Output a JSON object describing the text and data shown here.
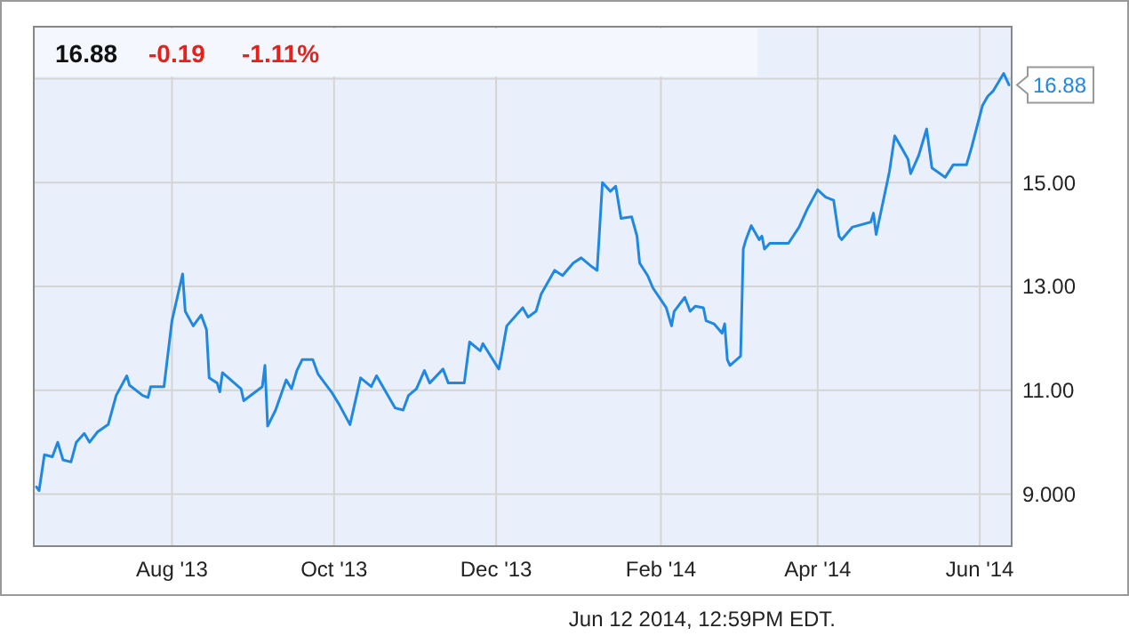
{
  "chart_data": {
    "type": "line",
    "x": [
      "2013-06-11",
      "2013-06-12",
      "2013-06-14",
      "2013-06-17",
      "2013-06-19",
      "2013-06-21",
      "2013-06-24",
      "2013-06-26",
      "2013-06-29",
      "2013-07-01",
      "2013-07-04",
      "2013-07-08",
      "2013-07-11",
      "2013-07-15",
      "2013-07-16",
      "2013-07-21",
      "2013-07-23",
      "2013-07-24",
      "2013-07-29",
      "2013-08-01",
      "2013-08-05",
      "2013-08-06",
      "2013-08-09",
      "2013-08-12",
      "2013-08-14",
      "2013-08-15",
      "2013-08-18",
      "2013-08-19",
      "2013-08-20",
      "2013-08-27",
      "2013-08-28",
      "2013-09-04",
      "2013-09-05",
      "2013-09-06",
      "2013-09-09",
      "2013-09-13",
      "2013-09-15",
      "2013-09-17",
      "2013-09-19",
      "2013-09-23",
      "2013-09-25",
      "2013-09-30",
      "2013-10-03",
      "2013-10-07",
      "2013-10-11",
      "2013-10-15",
      "2013-10-17",
      "2013-10-24",
      "2013-10-27",
      "2013-10-29",
      "2013-11-01",
      "2013-11-04",
      "2013-11-06",
      "2013-11-11",
      "2013-11-13",
      "2013-11-19",
      "2013-11-21",
      "2013-11-25",
      "2013-11-26",
      "2013-12-02",
      "2013-12-03",
      "2013-12-05",
      "2013-12-11",
      "2013-12-13",
      "2013-12-16",
      "2013-12-18",
      "2013-12-23",
      "2013-12-26",
      "2013-12-30",
      "2014-01-02",
      "2014-01-06",
      "2014-01-08",
      "2014-01-10",
      "2014-01-13",
      "2014-01-15",
      "2014-01-17",
      "2014-01-21",
      "2014-01-23",
      "2014-01-24",
      "2014-01-27",
      "2014-01-29",
      "2014-02-03",
      "2014-02-05",
      "2014-02-06",
      "2014-02-10",
      "2014-02-12",
      "2014-02-14",
      "2014-02-17",
      "2014-02-18",
      "2014-02-21",
      "2014-02-24",
      "2014-02-25",
      "2014-02-26",
      "2014-02-27",
      "2014-03-03",
      "2014-03-04",
      "2014-03-05",
      "2014-03-07",
      "2014-03-10",
      "2014-03-11",
      "2014-03-12",
      "2014-03-14",
      "2014-03-19",
      "2014-03-21",
      "2014-03-25",
      "2014-03-28",
      "2014-04-01",
      "2014-04-04",
      "2014-04-07",
      "2014-04-09",
      "2014-04-10",
      "2014-04-14",
      "2014-04-21",
      "2014-04-22",
      "2014-04-23",
      "2014-04-28",
      "2014-04-30",
      "2014-05-05",
      "2014-05-06",
      "2014-05-09",
      "2014-05-12",
      "2014-05-14",
      "2014-05-16",
      "2014-05-19",
      "2014-05-22",
      "2014-05-27",
      "2014-05-29",
      "2014-06-02",
      "2014-06-04",
      "2014-06-06",
      "2014-06-10",
      "2014-06-12"
    ],
    "series": [
      {
        "color": "#2088e0",
        "values": [
          9.14,
          9.07,
          9.76,
          9.72,
          10.0,
          9.66,
          9.62,
          10.0,
          10.17,
          10.0,
          10.2,
          10.34,
          10.9,
          11.28,
          11.1,
          10.9,
          10.86,
          11.07,
          11.07,
          12.34,
          13.24,
          12.52,
          12.24,
          12.45,
          12.17,
          11.24,
          11.14,
          10.97,
          11.34,
          11.03,
          10.8,
          11.07,
          11.48,
          10.31,
          10.62,
          11.2,
          11.03,
          11.38,
          11.59,
          11.59,
          11.31,
          10.97,
          10.72,
          10.34,
          11.24,
          11.07,
          11.28,
          10.66,
          10.62,
          10.9,
          11.03,
          11.38,
          11.14,
          11.41,
          11.14,
          11.14,
          11.93,
          11.76,
          11.9,
          11.41,
          11.66,
          12.24,
          12.59,
          12.41,
          12.52,
          12.86,
          13.31,
          13.21,
          13.45,
          13.55,
          13.38,
          13.31,
          15.0,
          14.83,
          14.93,
          14.31,
          14.34,
          13.97,
          13.45,
          13.21,
          12.97,
          12.59,
          12.24,
          12.52,
          12.79,
          12.52,
          12.62,
          12.59,
          12.34,
          12.28,
          12.1,
          12.28,
          11.59,
          11.48,
          11.66,
          13.72,
          13.9,
          14.17,
          13.9,
          13.97,
          13.72,
          13.83,
          13.83,
          13.83,
          14.14,
          14.48,
          14.86,
          14.72,
          14.66,
          13.97,
          13.9,
          14.14,
          14.24,
          14.41,
          14.0,
          15.21,
          15.9,
          15.45,
          15.17,
          15.52,
          16.03,
          15.28,
          15.21,
          15.1,
          15.34,
          15.34,
          15.69,
          16.48,
          16.66,
          16.76,
          17.1,
          16.88
        ]
      }
    ],
    "xlim": [
      "2013-06-10",
      "2014-06-13"
    ],
    "xticks": [
      {
        "value": "2013-08-01",
        "label": "Aug '13"
      },
      {
        "value": "2013-10-01",
        "label": "Oct '13"
      },
      {
        "value": "2013-12-01",
        "label": "Dec '13"
      },
      {
        "value": "2014-02-01",
        "label": "Feb '14"
      },
      {
        "value": "2014-04-01",
        "label": "Apr '14"
      },
      {
        "value": "2014-06-01",
        "label": "Jun '14"
      }
    ],
    "ylim": [
      8,
      18
    ],
    "yticks": [
      {
        "value": 9,
        "label": "9.000"
      },
      {
        "value": 11,
        "label": "11.00"
      },
      {
        "value": 13,
        "label": "13.00"
      },
      {
        "value": 15,
        "label": "15.00"
      },
      {
        "value": 17,
        "label": null
      }
    ],
    "grid": true,
    "annotations": [
      "16.88",
      "-0.19",
      "-1.11%",
      "Jun 12 2014, 12:59PM EDT.",
      {
        "text": "16.88",
        "x": "2014-06-12",
        "y": 16.88
      }
    ]
  }
}
